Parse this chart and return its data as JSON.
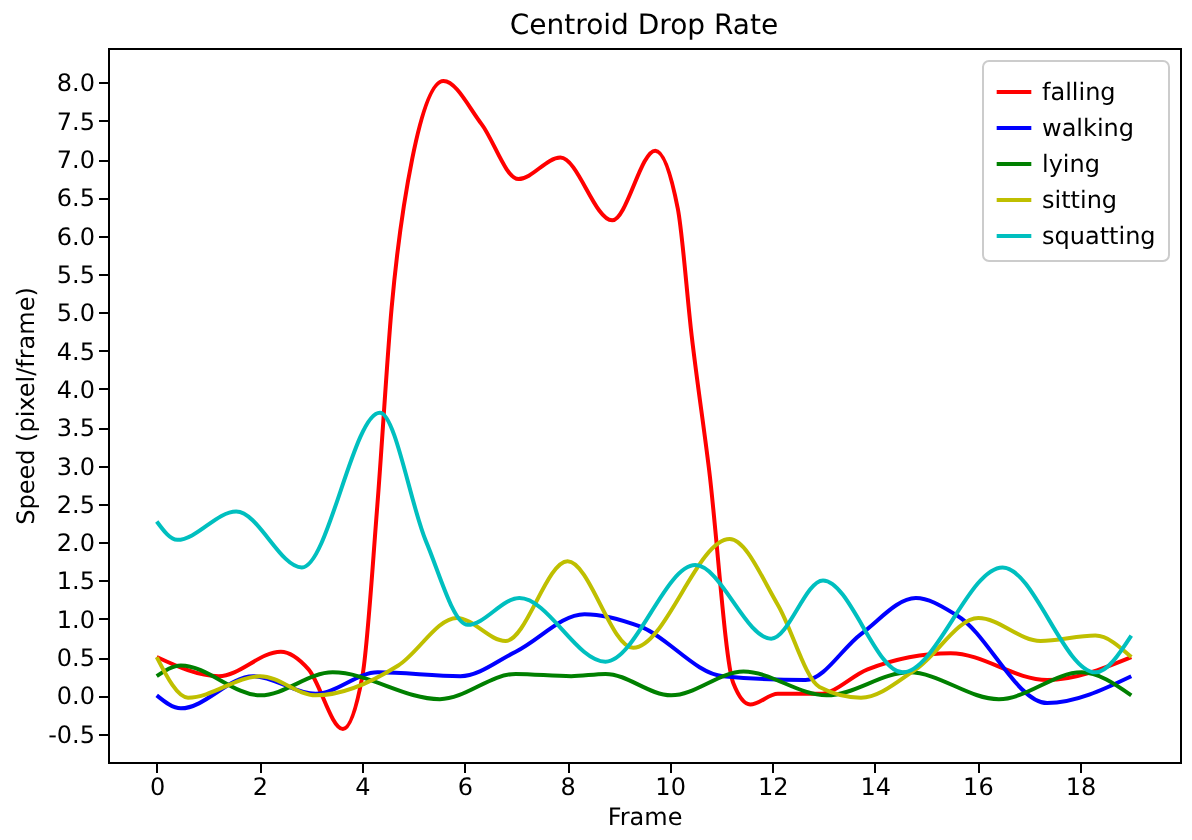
{
  "chart_data": {
    "type": "line",
    "title": "Centroid Drop Rate",
    "xlabel": "Frame",
    "ylabel": "Speed (pixel/frame)",
    "xlim": [
      -0.95,
      19.95
    ],
    "xticks": [
      0,
      2,
      4,
      6,
      8,
      10,
      12,
      14,
      16,
      18
    ],
    "ylim": [
      -0.87,
      8.45
    ],
    "yticks": [
      {
        "value": -0.5,
        "label": "-0.5"
      },
      {
        "value": 0,
        "label": "0.0"
      },
      {
        "value": 0.5,
        "label": "0.5"
      },
      {
        "value": 1,
        "label": "1.0"
      },
      {
        "value": 1.5,
        "label": "1.5"
      },
      {
        "value": 2,
        "label": "2.0"
      },
      {
        "value": 2.5,
        "label": "2.5"
      },
      {
        "value": 3,
        "label": "3.0"
      },
      {
        "value": 3.5,
        "label": "3.5"
      },
      {
        "value": 4,
        "label": "4.0"
      },
      {
        "value": 4.5,
        "label": "4.5"
      },
      {
        "value": 5,
        "label": "5.0"
      },
      {
        "value": 5.5,
        "label": "5.5"
      },
      {
        "value": 6,
        "label": "6.0"
      },
      {
        "value": 6.5,
        "label": "6.5"
      },
      {
        "value": 7,
        "label": "7.0"
      },
      {
        "value": 7.5,
        "label": "7.5"
      },
      {
        "value": 8,
        "label": "8.0"
      }
    ],
    "grid": false,
    "legend": "top right",
    "marker": "none",
    "line_style": "solid",
    "series": [
      {
        "name": "falling",
        "color": "#ff0000",
        "x": [
          0,
          1.21,
          2.42,
          2.96,
          3.63,
          4.01,
          4.3,
          4.58,
          4.98,
          5.59,
          6.33,
          7.05,
          7.87,
          8.88,
          9.72,
          10.16,
          10.43,
          10.77,
          11.24,
          11.57,
          12.11,
          12.92,
          13.86,
          15.48,
          17.36,
          19
        ],
        "values": [
          0.5,
          0.25,
          0.57,
          0.34,
          -0.44,
          0.25,
          2.47,
          5.06,
          7.0,
          8.02,
          7.46,
          6.74,
          7.02,
          6.2,
          7.11,
          6.35,
          4.69,
          2.94,
          0.16,
          -0.12,
          0.02,
          0.02,
          0.34,
          0.55,
          0.2,
          0.5
        ]
      },
      {
        "name": "walking",
        "color": "#0000ff",
        "x": [
          0,
          0.47,
          1.88,
          3.1,
          4.31,
          5.92,
          7.0,
          8.34,
          9.42,
          11.04,
          12.65,
          13.73,
          14.8,
          15.61,
          17.36,
          19
        ],
        "values": [
          0,
          -0.17,
          0.25,
          0.02,
          0.3,
          0.25,
          0.57,
          1.06,
          0.9,
          0.25,
          0.2,
          0.8,
          1.27,
          1.04,
          -0.1,
          0.25
        ]
      },
      {
        "name": "lying",
        "color": "#008000",
        "x": [
          0,
          0.47,
          2.02,
          3.43,
          5.52,
          7.0,
          8.08,
          8.75,
          10.03,
          11.44,
          13.06,
          14.67,
          16.42,
          18.03,
          19
        ],
        "values": [
          0.25,
          0.39,
          0,
          0.3,
          -0.05,
          0.28,
          0.25,
          0.28,
          0,
          0.31,
          0,
          0.3,
          -0.05,
          0.3,
          0
        ]
      },
      {
        "name": "sitting",
        "color": "#bfbf00",
        "x": [
          0,
          0.61,
          2.02,
          3.1,
          4.71,
          5.85,
          6.8,
          8.01,
          9.29,
          11.17,
          12.11,
          12.92,
          13.73,
          14.8,
          16.02,
          17.23,
          18.3,
          19
        ],
        "values": [
          0.5,
          -0.03,
          0.25,
          0,
          0.39,
          1.01,
          0.71,
          1.75,
          0.62,
          2.04,
          1.18,
          0.11,
          -0.03,
          0.34,
          1.01,
          0.71,
          0.78,
          0.5
        ]
      },
      {
        "name": "squatting",
        "color": "#00bfbf",
        "x": [
          0,
          0.4,
          1.55,
          2.83,
          4.35,
          5.25,
          6.06,
          7.07,
          8.75,
          10.5,
          11.98,
          12.99,
          14.54,
          16.49,
          18.3,
          19
        ],
        "values": [
          2.27,
          2.03,
          2.4,
          1.67,
          3.69,
          2.01,
          0.92,
          1.27,
          0.44,
          1.7,
          0.74,
          1.5,
          0.3,
          1.67,
          0.3,
          0.78
        ]
      }
    ]
  }
}
